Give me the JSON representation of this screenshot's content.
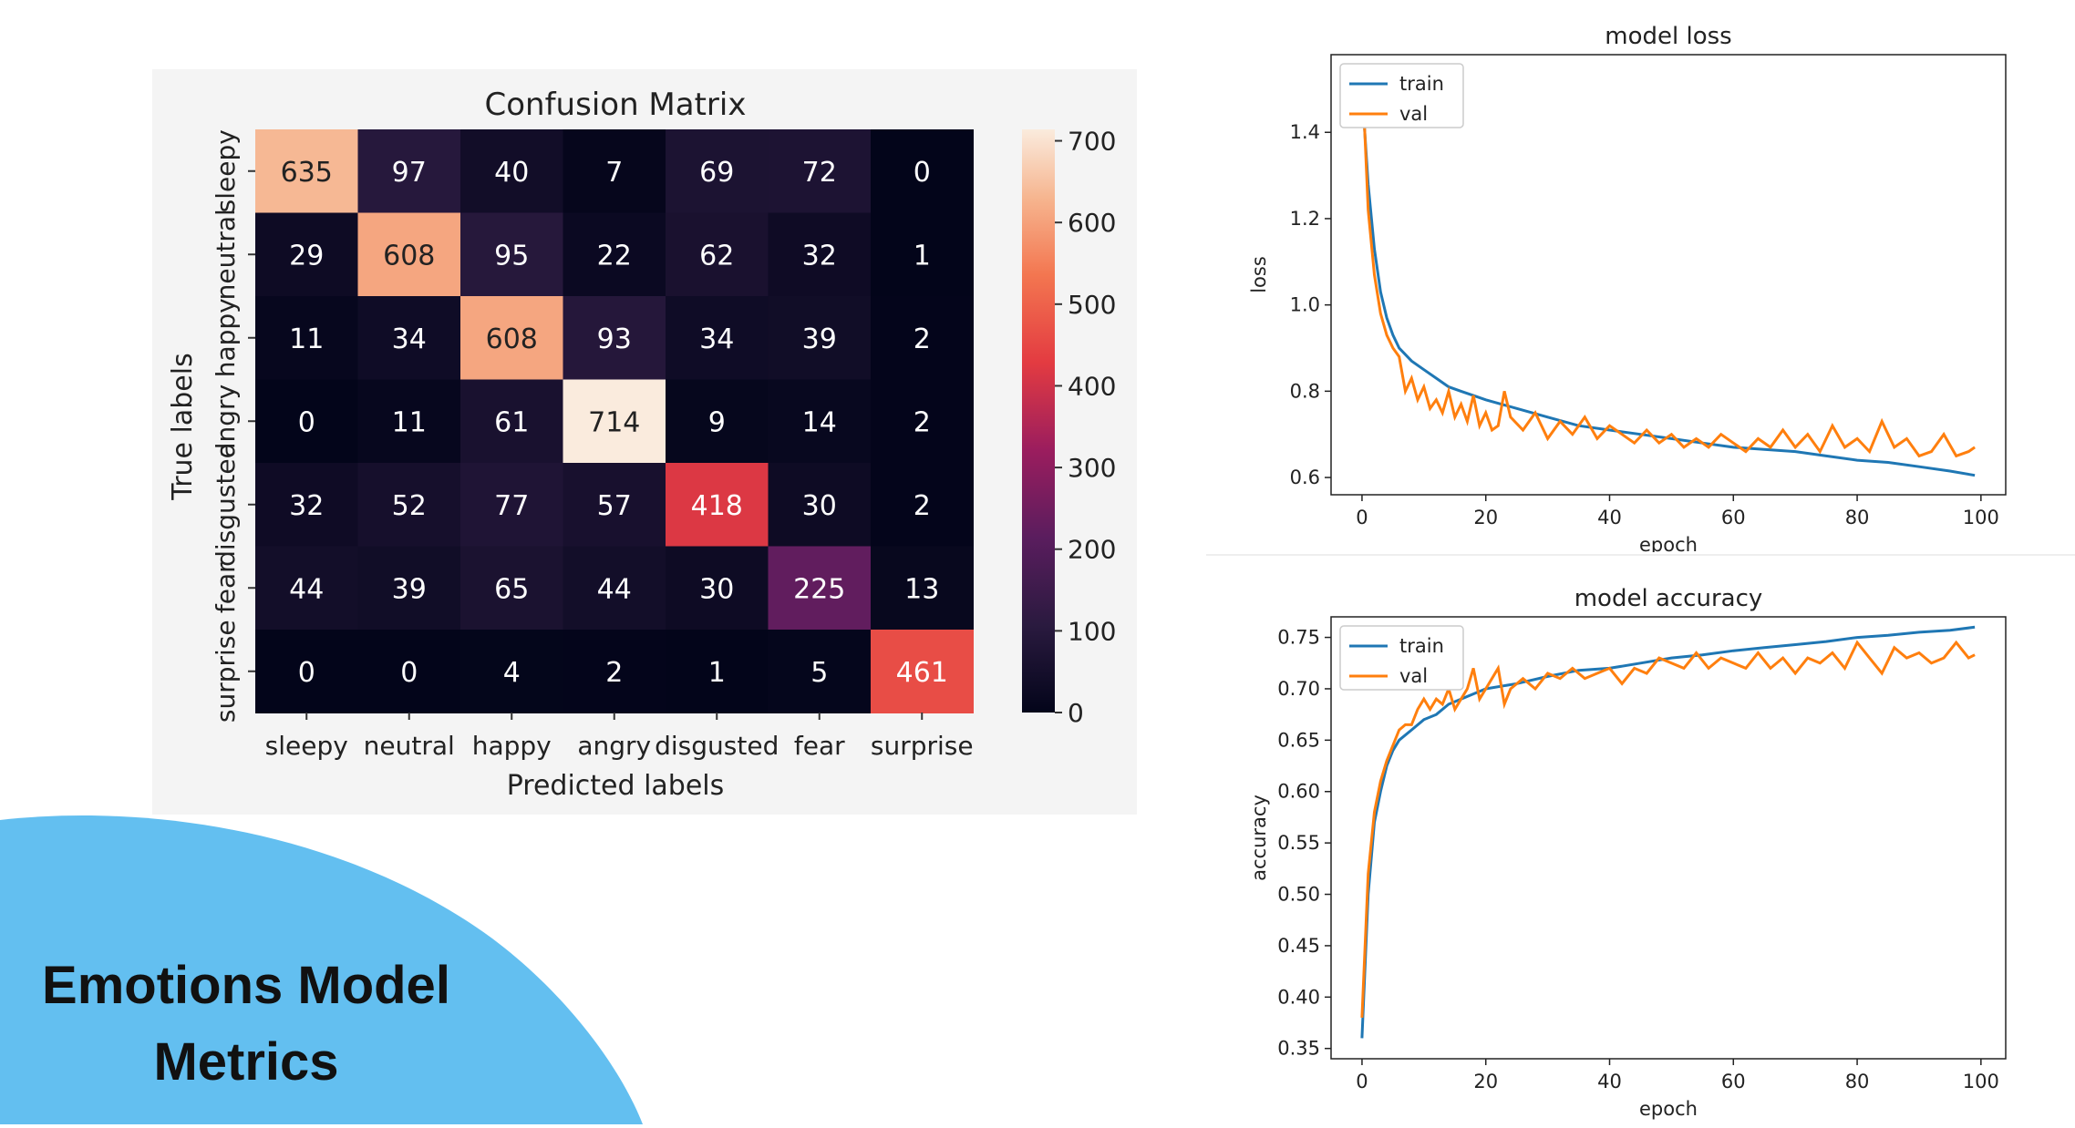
{
  "slide": {
    "title_line1": "Emotions Model",
    "title_line2": "Metrics",
    "blob_color": "#63bff0"
  },
  "chart_data": [
    {
      "type": "heatmap",
      "title": "Confusion Matrix",
      "xlabel": "Predicted labels",
      "ylabel": "True labels",
      "x_categories": [
        "sleepy",
        "neutral",
        "happy",
        "angry",
        "disgusted",
        "fear",
        "surprise"
      ],
      "y_categories": [
        "sleepy",
        "neutral",
        "happy",
        "angry",
        "disgusted",
        "fear",
        "surprise"
      ],
      "values": [
        [
          635,
          97,
          40,
          7,
          69,
          72,
          0
        ],
        [
          29,
          608,
          95,
          22,
          62,
          32,
          1
        ],
        [
          11,
          34,
          608,
          93,
          34,
          39,
          2
        ],
        [
          0,
          11,
          61,
          714,
          9,
          14,
          2
        ],
        [
          32,
          52,
          77,
          57,
          418,
          30,
          2
        ],
        [
          44,
          39,
          65,
          44,
          30,
          225,
          13
        ],
        [
          0,
          0,
          4,
          2,
          1,
          5,
          461
        ]
      ],
      "colorbar": {
        "ticks": [
          0,
          100,
          200,
          300,
          400,
          500,
          600,
          700
        ],
        "range": [
          0,
          714
        ],
        "colormap": "rocket"
      }
    },
    {
      "type": "line",
      "title": "model loss",
      "xlabel": "epoch",
      "ylabel": "loss",
      "xlim": [
        -5,
        104
      ],
      "ylim": [
        0.56,
        1.58
      ],
      "xticks": [
        0,
        20,
        40,
        60,
        80,
        100
      ],
      "yticks": [
        "0.6",
        "0.8",
        "1.0",
        "1.2",
        "1.4"
      ],
      "legend": "top-left",
      "series": [
        {
          "name": "train",
          "color": "#1f77b4",
          "points": [
            [
              0,
              1.5
            ],
            [
              1,
              1.28
            ],
            [
              2,
              1.13
            ],
            [
              3,
              1.03
            ],
            [
              4,
              0.97
            ],
            [
              5,
              0.93
            ],
            [
              6,
              0.9
            ],
            [
              8,
              0.87
            ],
            [
              10,
              0.85
            ],
            [
              12,
              0.83
            ],
            [
              14,
              0.81
            ],
            [
              16,
              0.8
            ],
            [
              18,
              0.79
            ],
            [
              20,
              0.78
            ],
            [
              25,
              0.76
            ],
            [
              30,
              0.74
            ],
            [
              35,
              0.72
            ],
            [
              40,
              0.71
            ],
            [
              45,
              0.7
            ],
            [
              50,
              0.69
            ],
            [
              55,
              0.68
            ],
            [
              60,
              0.67
            ],
            [
              65,
              0.665
            ],
            [
              70,
              0.66
            ],
            [
              75,
              0.65
            ],
            [
              80,
              0.64
            ],
            [
              85,
              0.635
            ],
            [
              90,
              0.625
            ],
            [
              95,
              0.615
            ],
            [
              99,
              0.605
            ]
          ]
        },
        {
          "name": "val",
          "color": "#ff7f0e",
          "points": [
            [
              0,
              1.55
            ],
            [
              1,
              1.22
            ],
            [
              2,
              1.07
            ],
            [
              3,
              0.98
            ],
            [
              4,
              0.93
            ],
            [
              5,
              0.9
            ],
            [
              6,
              0.88
            ],
            [
              7,
              0.8
            ],
            [
              8,
              0.83
            ],
            [
              9,
              0.78
            ],
            [
              10,
              0.81
            ],
            [
              11,
              0.76
            ],
            [
              12,
              0.78
            ],
            [
              13,
              0.75
            ],
            [
              14,
              0.8
            ],
            [
              15,
              0.74
            ],
            [
              16,
              0.77
            ],
            [
              17,
              0.73
            ],
            [
              18,
              0.79
            ],
            [
              19,
              0.72
            ],
            [
              20,
              0.75
            ],
            [
              21,
              0.71
            ],
            [
              22,
              0.72
            ],
            [
              23,
              0.8
            ],
            [
              24,
              0.74
            ],
            [
              26,
              0.71
            ],
            [
              28,
              0.75
            ],
            [
              30,
              0.69
            ],
            [
              32,
              0.73
            ],
            [
              34,
              0.7
            ],
            [
              36,
              0.74
            ],
            [
              38,
              0.69
            ],
            [
              40,
              0.72
            ],
            [
              42,
              0.7
            ],
            [
              44,
              0.68
            ],
            [
              46,
              0.71
            ],
            [
              48,
              0.68
            ],
            [
              50,
              0.7
            ],
            [
              52,
              0.67
            ],
            [
              54,
              0.69
            ],
            [
              56,
              0.67
            ],
            [
              58,
              0.7
            ],
            [
              60,
              0.68
            ],
            [
              62,
              0.66
            ],
            [
              64,
              0.69
            ],
            [
              66,
              0.67
            ],
            [
              68,
              0.71
            ],
            [
              70,
              0.67
            ],
            [
              72,
              0.7
            ],
            [
              74,
              0.66
            ],
            [
              76,
              0.72
            ],
            [
              78,
              0.67
            ],
            [
              80,
              0.69
            ],
            [
              82,
              0.66
            ],
            [
              84,
              0.73
            ],
            [
              86,
              0.67
            ],
            [
              88,
              0.69
            ],
            [
              90,
              0.65
            ],
            [
              92,
              0.66
            ],
            [
              94,
              0.7
            ],
            [
              96,
              0.65
            ],
            [
              98,
              0.66
            ],
            [
              99,
              0.67
            ]
          ]
        }
      ]
    },
    {
      "type": "line",
      "title": "model accuracy",
      "xlabel": "epoch",
      "ylabel": "accuracy",
      "xlim": [
        -5,
        104
      ],
      "ylim": [
        0.34,
        0.77
      ],
      "xticks": [
        0,
        20,
        40,
        60,
        80,
        100
      ],
      "yticks": [
        "0.35",
        "0.40",
        "0.45",
        "0.50",
        "0.55",
        "0.60",
        "0.65",
        "0.70",
        "0.75"
      ],
      "legend": "top-left",
      "series": [
        {
          "name": "train",
          "color": "#1f77b4",
          "points": [
            [
              0,
              0.36
            ],
            [
              1,
              0.5
            ],
            [
              2,
              0.57
            ],
            [
              3,
              0.6
            ],
            [
              4,
              0.625
            ],
            [
              5,
              0.64
            ],
            [
              6,
              0.65
            ],
            [
              8,
              0.66
            ],
            [
              10,
              0.67
            ],
            [
              12,
              0.675
            ],
            [
              14,
              0.685
            ],
            [
              16,
              0.69
            ],
            [
              18,
              0.695
            ],
            [
              20,
              0.7
            ],
            [
              25,
              0.705
            ],
            [
              30,
              0.712
            ],
            [
              35,
              0.718
            ],
            [
              40,
              0.72
            ],
            [
              45,
              0.725
            ],
            [
              50,
              0.73
            ],
            [
              55,
              0.733
            ],
            [
              60,
              0.737
            ],
            [
              65,
              0.74
            ],
            [
              70,
              0.743
            ],
            [
              75,
              0.746
            ],
            [
              80,
              0.75
            ],
            [
              85,
              0.752
            ],
            [
              90,
              0.755
            ],
            [
              95,
              0.757
            ],
            [
              99,
              0.76
            ]
          ]
        },
        {
          "name": "val",
          "color": "#ff7f0e",
          "points": [
            [
              0,
              0.38
            ],
            [
              1,
              0.52
            ],
            [
              2,
              0.58
            ],
            [
              3,
              0.61
            ],
            [
              4,
              0.63
            ],
            [
              5,
              0.645
            ],
            [
              6,
              0.66
            ],
            [
              7,
              0.665
            ],
            [
              8,
              0.665
            ],
            [
              9,
              0.68
            ],
            [
              10,
              0.69
            ],
            [
              11,
              0.68
            ],
            [
              12,
              0.69
            ],
            [
              13,
              0.685
            ],
            [
              14,
              0.7
            ],
            [
              15,
              0.68
            ],
            [
              16,
              0.69
            ],
            [
              17,
              0.7
            ],
            [
              18,
              0.72
            ],
            [
              19,
              0.69
            ],
            [
              20,
              0.7
            ],
            [
              21,
              0.71
            ],
            [
              22,
              0.72
            ],
            [
              23,
              0.685
            ],
            [
              24,
              0.7
            ],
            [
              26,
              0.71
            ],
            [
              28,
              0.7
            ],
            [
              30,
              0.715
            ],
            [
              32,
              0.71
            ],
            [
              34,
              0.72
            ],
            [
              36,
              0.71
            ],
            [
              38,
              0.715
            ],
            [
              40,
              0.72
            ],
            [
              42,
              0.705
            ],
            [
              44,
              0.72
            ],
            [
              46,
              0.715
            ],
            [
              48,
              0.73
            ],
            [
              50,
              0.725
            ],
            [
              52,
              0.72
            ],
            [
              54,
              0.735
            ],
            [
              56,
              0.72
            ],
            [
              58,
              0.73
            ],
            [
              60,
              0.725
            ],
            [
              62,
              0.72
            ],
            [
              64,
              0.735
            ],
            [
              66,
              0.72
            ],
            [
              68,
              0.73
            ],
            [
              70,
              0.715
            ],
            [
              72,
              0.73
            ],
            [
              74,
              0.725
            ],
            [
              76,
              0.735
            ],
            [
              78,
              0.72
            ],
            [
              80,
              0.745
            ],
            [
              82,
              0.73
            ],
            [
              84,
              0.715
            ],
            [
              86,
              0.74
            ],
            [
              88,
              0.73
            ],
            [
              90,
              0.735
            ],
            [
              92,
              0.725
            ],
            [
              94,
              0.73
            ],
            [
              96,
              0.745
            ],
            [
              98,
              0.73
            ],
            [
              99,
              0.733
            ]
          ]
        }
      ]
    }
  ]
}
